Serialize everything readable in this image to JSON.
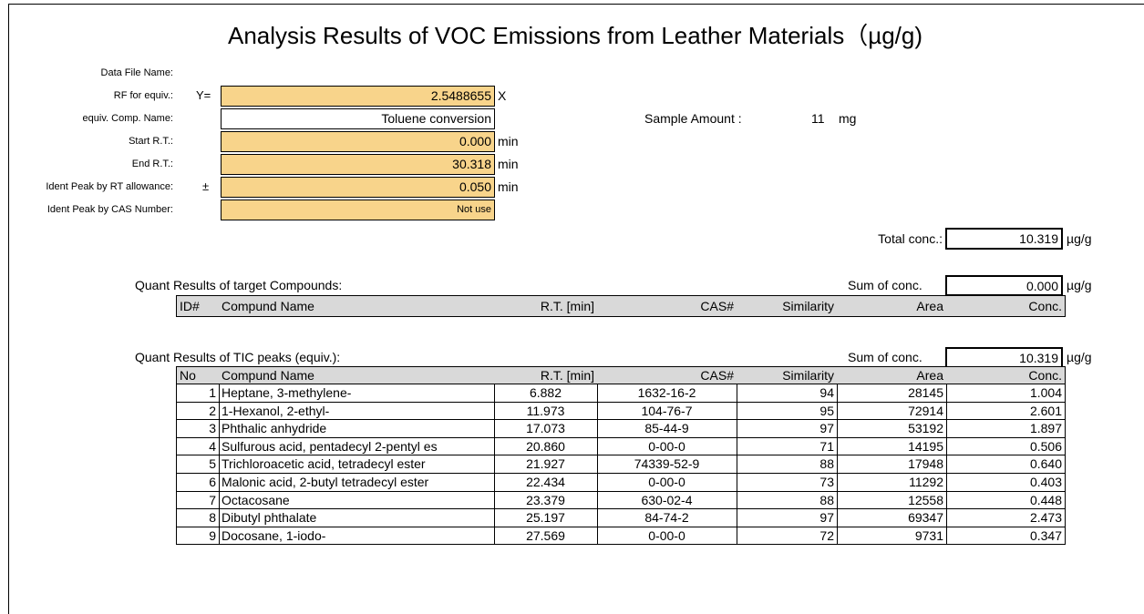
{
  "title": "Analysis Results of VOC Emissions from Leather Materials（µg/g)",
  "settings": [
    {
      "label": "Data File Name:"
    },
    {
      "label": "RF for equiv.:",
      "prefix": "Y=",
      "value": "2.5488655",
      "unit": "X"
    },
    {
      "label": "equiv. Comp. Name:",
      "value": "Toluene conversion"
    },
    {
      "label": "Start R.T.:",
      "value": "0.000",
      "unit": "min"
    },
    {
      "label": "End R.T.:",
      "value": "30.318",
      "unit": "min"
    },
    {
      "label": "Ident Peak by RT allowance:",
      "prefix": "±",
      "value": "0.050",
      "unit": "min"
    },
    {
      "label": "Ident Peak by CAS Number:",
      "value": "Not use"
    }
  ],
  "sample": {
    "label": "Sample Amount :",
    "value": "11",
    "unit": "mg"
  },
  "total": {
    "label": "Total conc.:",
    "value": "10.319",
    "unit": "µg/g"
  },
  "target": {
    "title": "Quant Results of target Compounds:",
    "sum_label": "Sum of  conc.",
    "sum_value": "0.000",
    "sum_unit": "µg/g",
    "columns": [
      "ID#",
      "Compund Name",
      "R.T. [min]",
      "CAS#",
      "Similarity",
      "Area",
      "Conc."
    ]
  },
  "tic": {
    "title": "Quant Results of TIC peaks (equiv.):",
    "sum_label": "Sum of  conc.",
    "sum_value": "10.319",
    "sum_unit": "µg/g",
    "columns": [
      "No",
      "Compund Name",
      "R.T. [min]",
      "CAS#",
      "Similarity",
      "Area",
      "Conc."
    ],
    "rows": [
      [
        "1",
        "Heptane, 3-methylene-",
        "6.882",
        "1632-16-2",
        "94",
        "28145",
        "1.004"
      ],
      [
        "2",
        "1-Hexanol, 2-ethyl-",
        "11.973",
        "104-76-7",
        "95",
        "72914",
        "2.601"
      ],
      [
        "3",
        "Phthalic anhydride",
        "17.073",
        "85-44-9",
        "97",
        "53192",
        "1.897"
      ],
      [
        "4",
        "Sulfurous acid, pentadecyl 2-pentyl es",
        "20.860",
        "0-00-0",
        "71",
        "14195",
        "0.506"
      ],
      [
        "5",
        "Trichloroacetic acid, tetradecyl ester",
        "21.927",
        "74339-52-9",
        "88",
        "17948",
        "0.640"
      ],
      [
        "6",
        "Malonic acid, 2-butyl tetradecyl ester",
        "22.434",
        "0-00-0",
        "73",
        "11292",
        "0.403"
      ],
      [
        "7",
        "Octacosane",
        "23.379",
        "630-02-4",
        "88",
        "12558",
        "0.448"
      ],
      [
        "8",
        "Dibutyl phthalate",
        "25.197",
        "84-74-2",
        "97",
        "69347",
        "2.473"
      ],
      [
        "9",
        "Docosane, 1-iodo-",
        "27.569",
        "0-00-0",
        "72",
        "9731",
        "0.347"
      ]
    ]
  }
}
